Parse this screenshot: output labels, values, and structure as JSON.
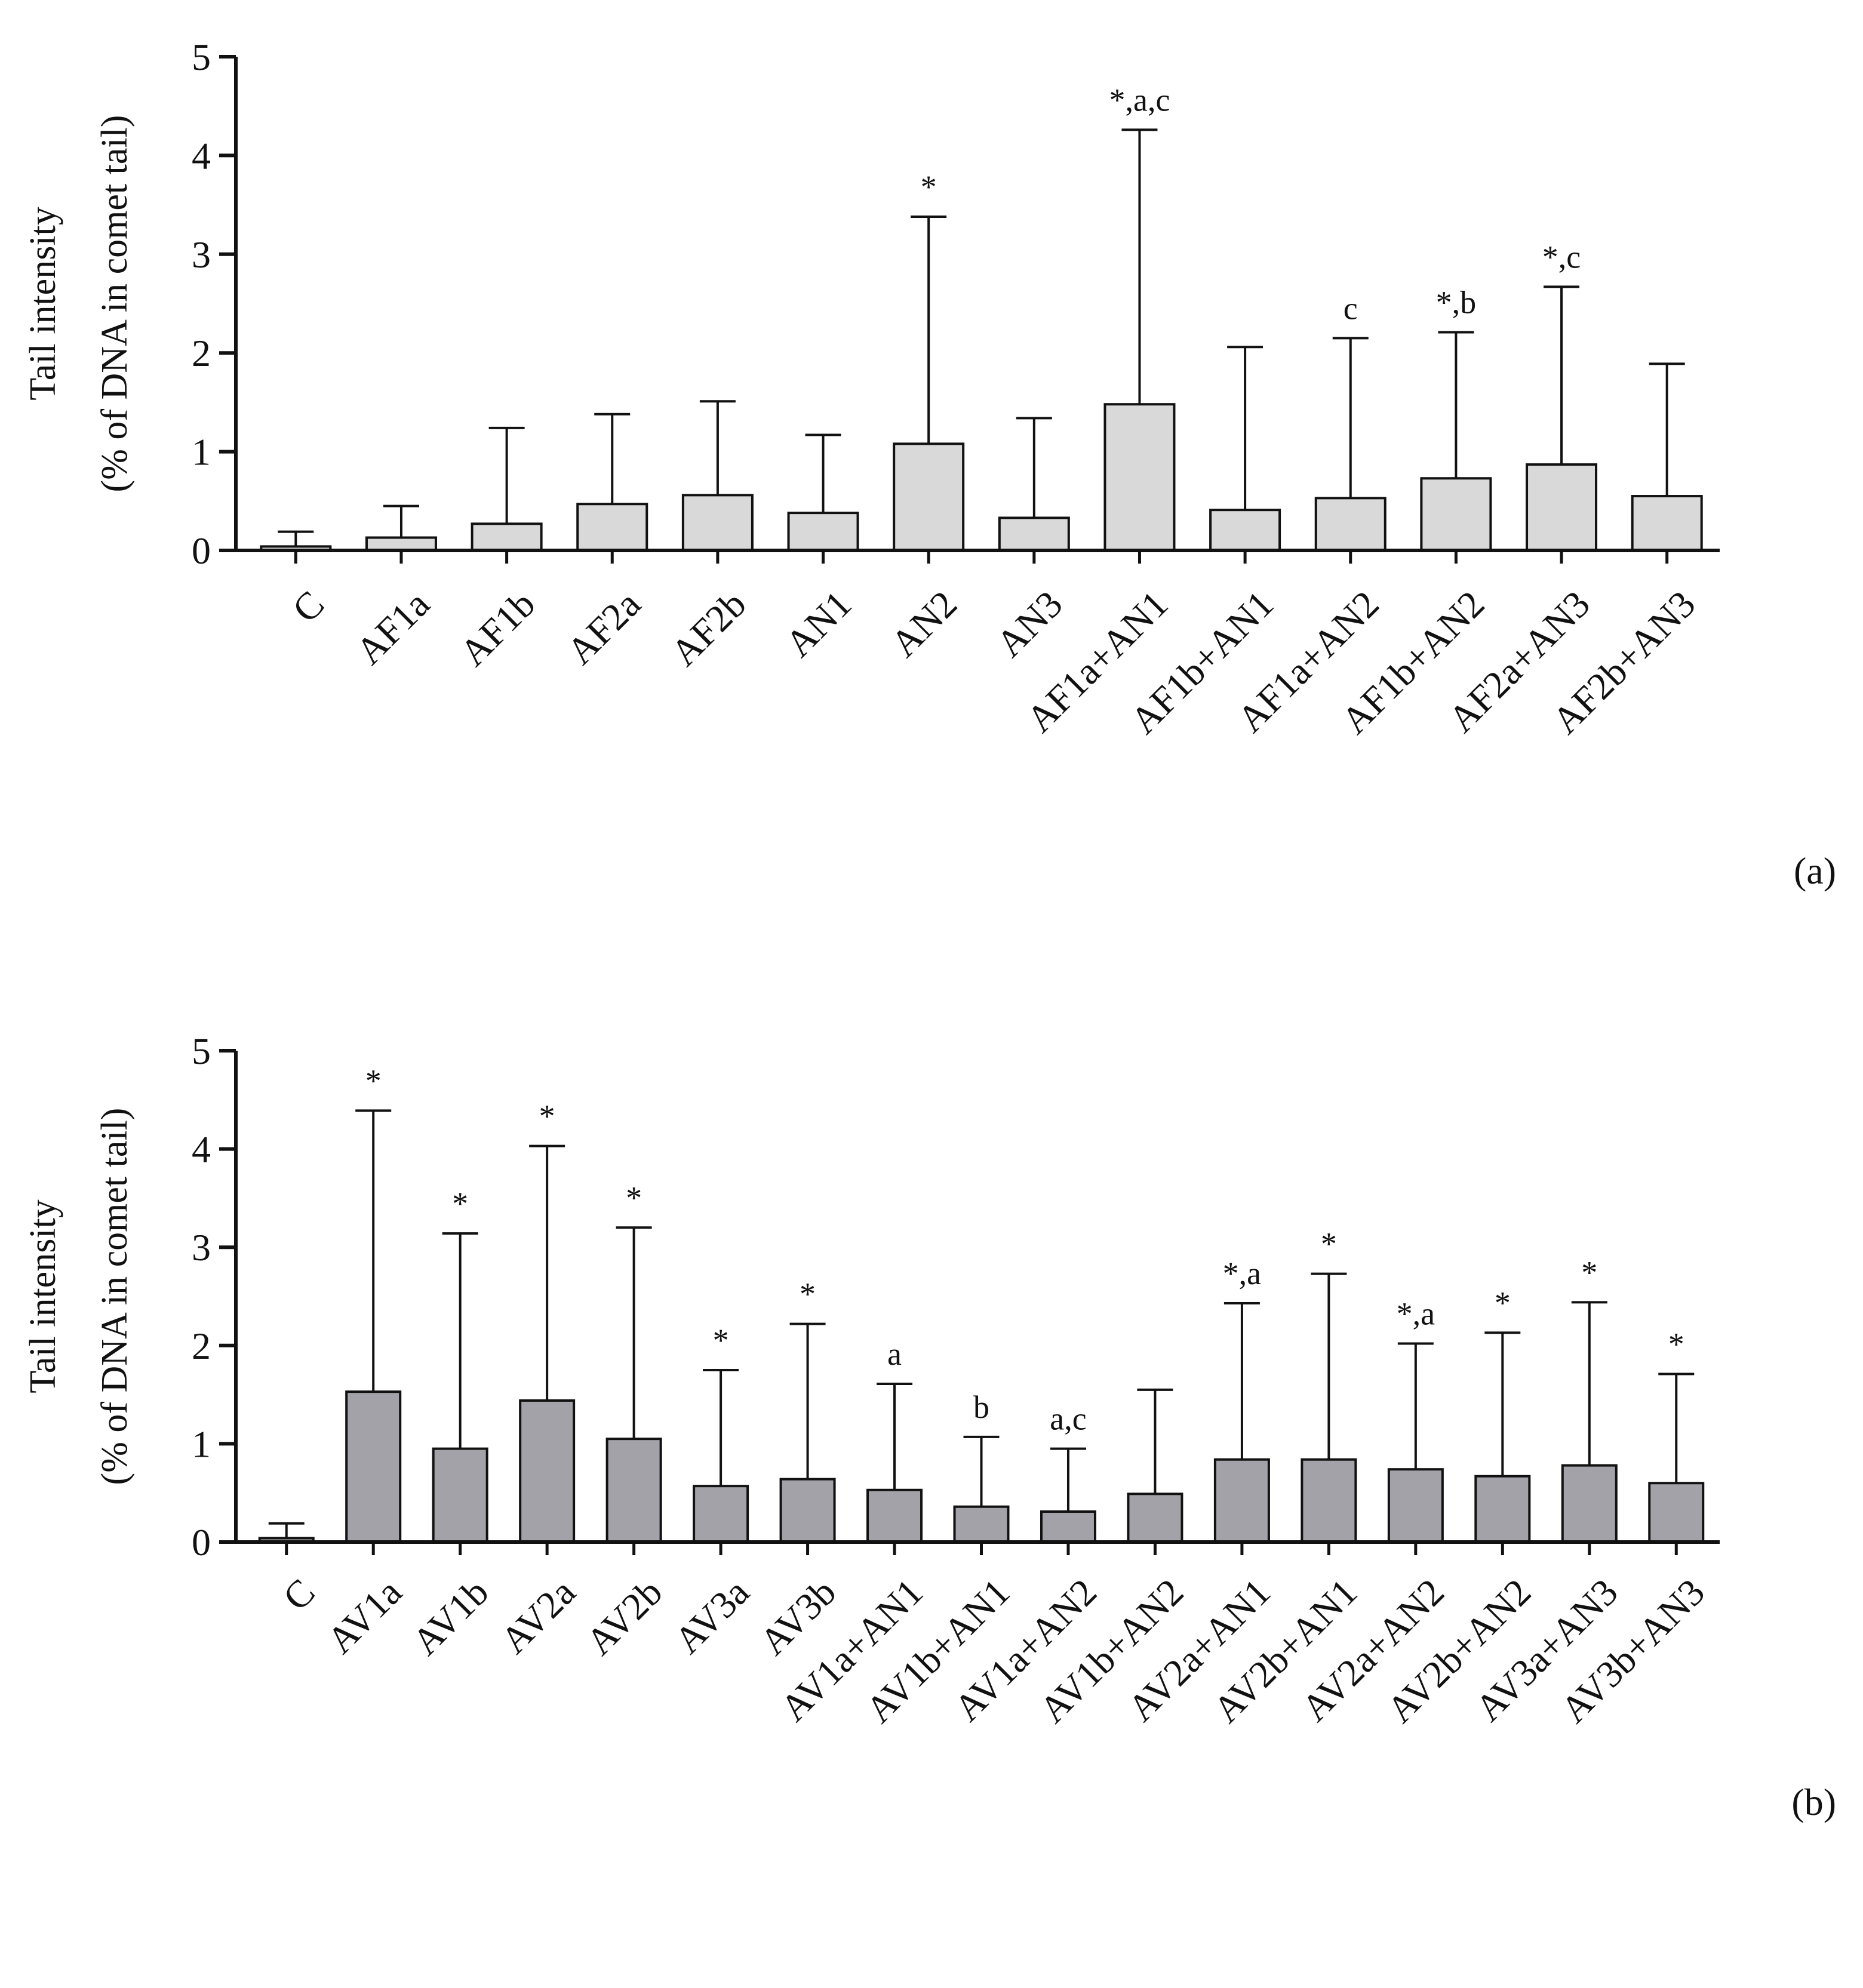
{
  "chart_data": [
    {
      "type": "bar",
      "panel_label": "(a)",
      "ylabel_line1": "Tail intensity",
      "ylabel_line2": "(% of DNA in comet tail)",
      "ylim": [
        0,
        5
      ],
      "yticks": [
        "0",
        "1",
        "2",
        "3",
        "4",
        "5"
      ],
      "bar_color": "#d9d9d9",
      "categories": [
        "C",
        "AF1a",
        "AF1b",
        "AF2a",
        "AF2b",
        "AN1",
        "AN2",
        "AN3",
        "AF1a+AN1",
        "AF1b+AN1",
        "AF1a+AN2",
        "AF1b+AN2",
        "AF2a+AN3",
        "AF2b+AN3"
      ],
      "values": [
        0.04,
        0.13,
        0.27,
        0.47,
        0.56,
        0.38,
        1.08,
        0.33,
        1.48,
        0.41,
        0.53,
        0.73,
        0.87,
        0.55
      ],
      "error_upper": [
        0.19,
        0.45,
        1.24,
        1.38,
        1.51,
        1.17,
        3.38,
        1.34,
        4.26,
        2.06,
        2.15,
        2.21,
        2.67,
        1.89
      ],
      "annotations": [
        "",
        "",
        "",
        "",
        "",
        "",
        "*",
        "",
        "*,a,c",
        "",
        "c",
        "*,b",
        "*,c",
        ""
      ]
    },
    {
      "type": "bar",
      "panel_label": "(b)",
      "ylabel_line1": "Tail intensity",
      "ylabel_line2": "(% of DNA in comet tail)",
      "ylim": [
        0,
        5
      ],
      "yticks": [
        "0",
        "1",
        "2",
        "3",
        "4",
        "5"
      ],
      "bar_color": "#a2a2a8",
      "categories": [
        "C",
        "AV1a",
        "AV1b",
        "AV2a",
        "AV2b",
        "AV3a",
        "AV3b",
        "AV1a+AN1",
        "AV1b+AN1",
        "AV1a+AN2",
        "AV1b+AN2",
        "AV2a+AN1",
        "AV2b+AN1",
        "AV2a+AN2",
        "AV2b+AN2",
        "AV3a+AN3",
        "AV3b+AN3"
      ],
      "values": [
        0.04,
        1.53,
        0.95,
        1.44,
        1.05,
        0.57,
        0.64,
        0.53,
        0.36,
        0.31,
        0.49,
        0.84,
        0.84,
        0.74,
        0.67,
        0.78,
        0.6
      ],
      "error_upper": [
        0.19,
        4.39,
        3.14,
        4.03,
        3.2,
        1.75,
        2.22,
        1.61,
        1.07,
        0.95,
        1.55,
        2.43,
        2.73,
        2.02,
        2.13,
        2.44,
        1.71
      ],
      "annotations": [
        "",
        "*",
        "*",
        "*",
        "*",
        "*",
        "*",
        "a",
        "b",
        "a,c",
        "",
        "*,a",
        "*",
        "*,a",
        "*",
        "*",
        "*"
      ]
    }
  ]
}
